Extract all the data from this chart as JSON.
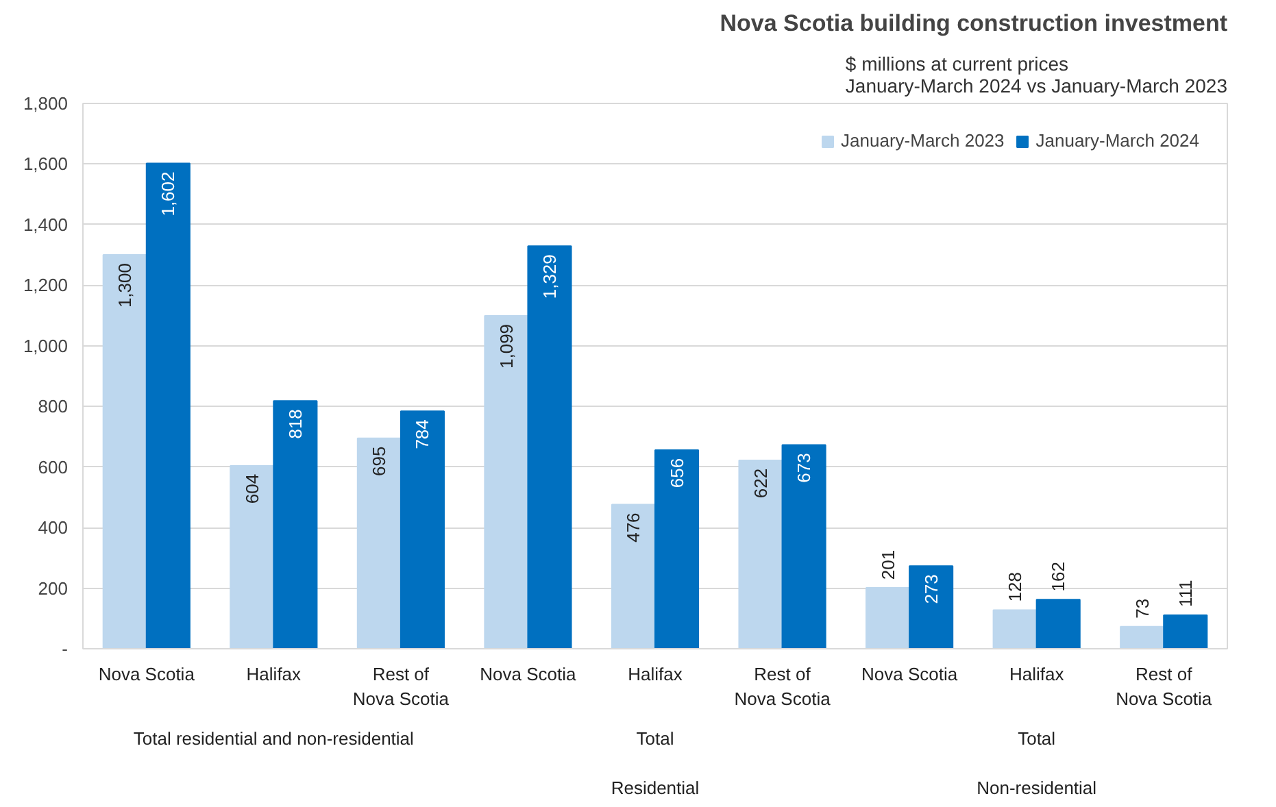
{
  "chart_data": {
    "type": "bar",
    "title": "Nova Scotia building construction investment",
    "subtitle": "$ millions at current prices\nJanuary-March 2024 vs January-March 2023",
    "categories": [
      "Nova Scotia",
      "Halifax",
      "Rest of\nNova Scotia",
      "Nova Scotia",
      "Halifax",
      "Rest of\nNova Scotia",
      "Nova Scotia",
      "Halifax",
      "Rest of\nNova Scotia"
    ],
    "annotations": [
      "Total residential and non-residential",
      "Total\n\nResidential",
      "Total\n\nNon-residential"
    ],
    "series": [
      {
        "name": "January-March 2023",
        "color": "#bdd7ee",
        "values": [
          1300,
          604,
          695,
          1099,
          476,
          622,
          201,
          128,
          73
        ],
        "value_labels": [
          "1,300",
          "604",
          "695",
          "1,099",
          "476",
          "622",
          "201",
          "128",
          "73"
        ]
      },
      {
        "name": "January-March 2024",
        "color": "#0070c0",
        "values": [
          1602,
          818,
          784,
          1329,
          656,
          673,
          273,
          162,
          111
        ],
        "value_labels": [
          "1,602",
          "818",
          "784",
          "1,329",
          "656",
          "673",
          "273",
          "162",
          "111"
        ]
      }
    ],
    "ylim": [
      0,
      1800
    ],
    "yticks": [
      {
        "value": 0,
        "label": "-"
      },
      200,
      400,
      600,
      800,
      {
        "value": 1000,
        "label": "1,000"
      },
      {
        "value": 1200,
        "label": "1,200"
      },
      {
        "value": 1400,
        "label": "1,400"
      },
      {
        "value": 1600,
        "label": "1,600"
      },
      {
        "value": 1800,
        "label": "1,800"
      }
    ],
    "grid": "y",
    "legend": "top right"
  }
}
